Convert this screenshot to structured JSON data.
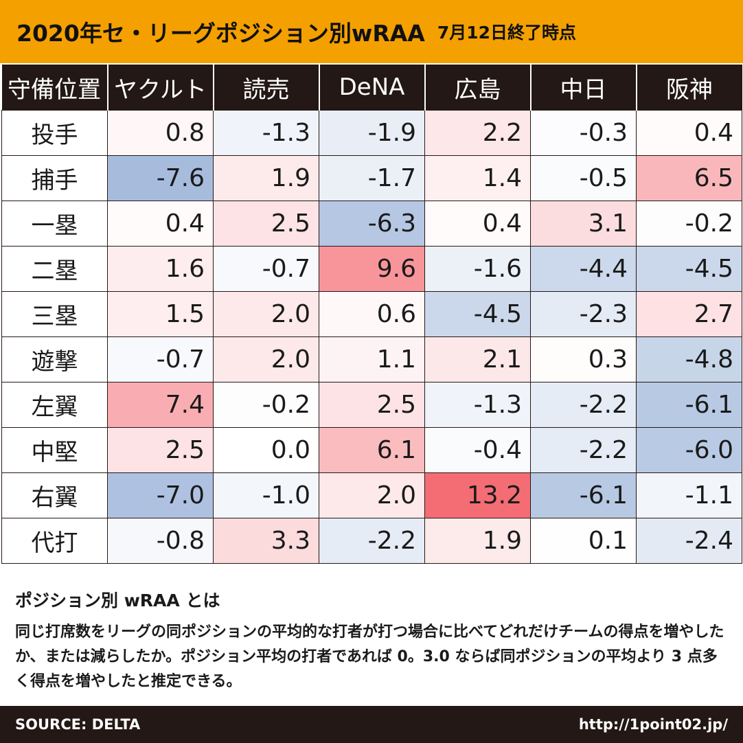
{
  "header": {
    "title": "2020年セ・リーグポジション別wRAA",
    "subtitle": "7月12日終了時点"
  },
  "chart_data": {
    "type": "heatmap",
    "title": "2020年セ・リーグポジション別wRAA",
    "subtitle": "7月12日終了時点",
    "corner_label": "守備位置",
    "teams": [
      "ヤクルト",
      "読売",
      "DeNA",
      "広島",
      "中日",
      "阪神"
    ],
    "positions": [
      "投手",
      "捕手",
      "一塁",
      "二塁",
      "三塁",
      "遊撃",
      "左翼",
      "中堅",
      "右翼",
      "代打"
    ],
    "values": [
      [
        "0.8",
        "-1.3",
        "-1.9",
        "2.2",
        "-0.3",
        "0.4"
      ],
      [
        "-7.6",
        "1.9",
        "-1.7",
        "1.4",
        "-0.5",
        "6.5"
      ],
      [
        "0.4",
        "2.5",
        "-6.3",
        "0.4",
        "3.1",
        "-0.2"
      ],
      [
        "1.6",
        "-0.7",
        "9.6",
        "-1.6",
        "-4.4",
        "-4.5"
      ],
      [
        "1.5",
        "2.0",
        "0.6",
        "-4.5",
        "-2.3",
        "2.7"
      ],
      [
        "-0.7",
        "2.0",
        "1.1",
        "2.1",
        "0.3",
        "-4.8"
      ],
      [
        "7.4",
        "-0.2",
        "2.5",
        "-1.3",
        "-2.2",
        "-6.1"
      ],
      [
        "2.5",
        "0.0",
        "6.1",
        "-0.4",
        "-2.2",
        "-6.0"
      ],
      [
        "-7.0",
        "-1.0",
        "2.0",
        "13.2",
        "-6.1",
        "-1.1"
      ],
      [
        "-0.8",
        "3.3",
        "-2.2",
        "1.9",
        "0.1",
        "-2.4"
      ]
    ],
    "colors": {
      "positive": "#f46d75",
      "negative": "#9fb6da",
      "neutral": "#ffffff"
    }
  },
  "note": {
    "title": "ポジション別 wRAA とは",
    "body": "同じ打席数をリーグの同ポジションの平均的な打者が打つ場合に比べてどれだけチームの得点を増やしたか、または減らしたか。ポジション平均の打者であれば 0。3.0 ならば同ポジションの平均より 3 点多く得点を増やしたと推定できる。"
  },
  "footer": {
    "source": "SOURCE: DELTA",
    "url": "http://1point02.jp/"
  }
}
